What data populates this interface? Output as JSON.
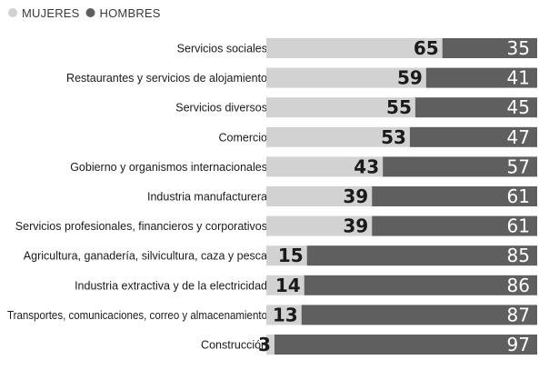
{
  "chart_data": {
    "type": "bar",
    "stacked": true,
    "orientation": "horizontal",
    "legend": {
      "position": "top-left"
    },
    "categories": [
      "Servicios sociales",
      "Restaurantes y servicios de alojamiento",
      "Servicios diversos",
      "Comercio",
      "Gobierno y organismos internacionales",
      "Industria manufacturera",
      "Servicios profesionales, financieros y corporativos",
      "Agricultura, ganadería, silvicultura, caza y pesca",
      "Industria extractiva y de la electricidad",
      "Transportes, comunicaciones, correo y almacenamiento",
      "Construcción"
    ],
    "series": [
      {
        "name": "MUJERES",
        "color": "#d2d2d2",
        "values": [
          65,
          59,
          55,
          53,
          43,
          39,
          39,
          15,
          14,
          13,
          3
        ]
      },
      {
        "name": "HOMBRES",
        "color": "#5f5f5f",
        "values": [
          35,
          41,
          45,
          47,
          57,
          61,
          61,
          85,
          86,
          87,
          97
        ]
      }
    ],
    "xlim": [
      0,
      100
    ]
  }
}
